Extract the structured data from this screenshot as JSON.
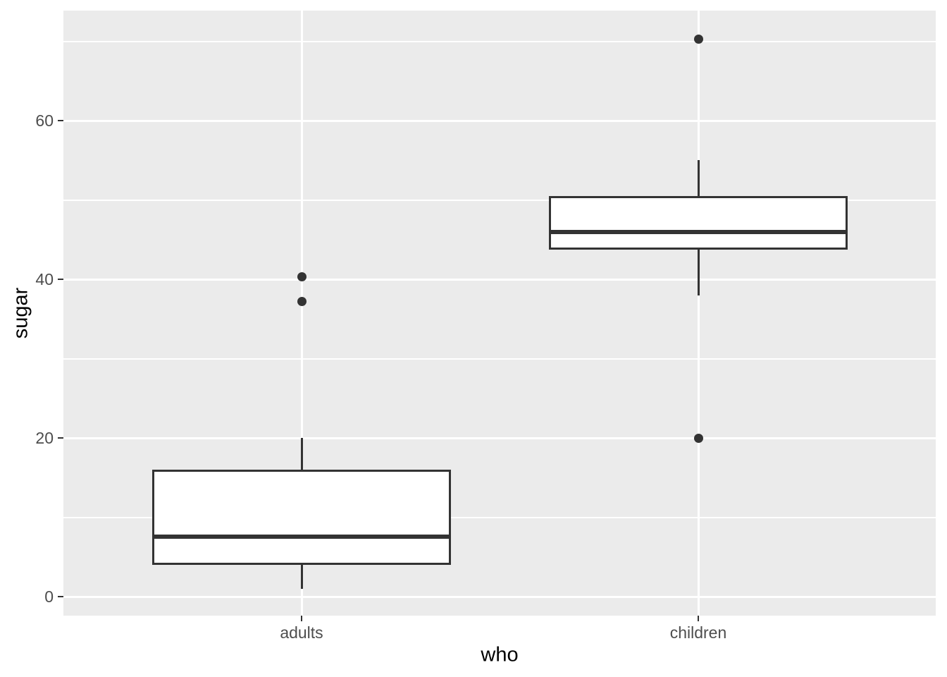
{
  "chart_data": {
    "type": "boxplot",
    "title": "",
    "xlabel": "who",
    "ylabel": "sugar",
    "categories": [
      "adults",
      "children"
    ],
    "x_tick_labels": [
      "adults",
      "children"
    ],
    "y_ticks": [
      0,
      20,
      40,
      60
    ],
    "y_tick_labels": [
      "0",
      "20",
      "40",
      "60"
    ],
    "y_minor_ticks": [
      10,
      30,
      50,
      70
    ],
    "ylim": [
      -2.4,
      73.9
    ],
    "grid": "major+minor horizontal, major vertical at categories",
    "legend": "none",
    "series": [
      {
        "name": "adults",
        "whisker_low": 1,
        "q1": 4,
        "median": 7.6,
        "q3": 16,
        "whisker_high": 20,
        "outliers": [
          37.2,
          40.3
        ]
      },
      {
        "name": "children",
        "whisker_low": 38,
        "q1": 43.7,
        "median": 46,
        "q3": 50.5,
        "whisker_high": 55,
        "outliers": [
          20,
          70.3
        ]
      }
    ],
    "colors": {
      "panel_background": "#EBEBEB",
      "gridline": "#FFFFFF",
      "box_fill": "#FFFFFF",
      "box_stroke": "#333333",
      "median": "#333333",
      "outlier": "#333333",
      "tick_label_text": "#4D4D4D",
      "axis_title_text": "#000000",
      "figure_background": "#FFFFFF"
    }
  }
}
